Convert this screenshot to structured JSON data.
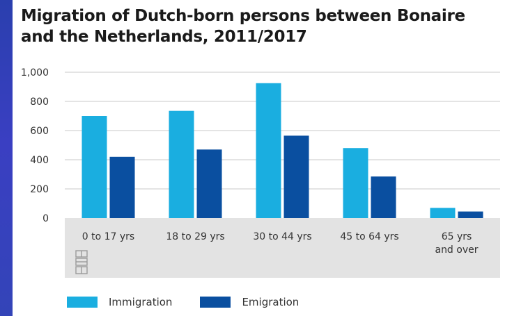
{
  "colors": {
    "immigration": "#1aaee0",
    "emigration": "#0a4fa0",
    "category_band": "#e3e3e3",
    "grid": "#c8c8c8"
  },
  "chart_data": {
    "type": "bar",
    "title": "Migration of Dutch-born persons between Bonaire and the Netherlands, 2011/2017",
    "xlabel": "",
    "ylabel": "",
    "categories": [
      "0 to 17 yrs",
      "18 to 29 yrs",
      "30 to 44 yrs",
      "45 to 64 yrs",
      "65 yrs and over"
    ],
    "category_lines": [
      [
        "0 to 17 yrs"
      ],
      [
        "18 to 29 yrs"
      ],
      [
        "30 to 44 yrs"
      ],
      [
        "45 to 64 yrs"
      ],
      [
        "65 yrs",
        "and over"
      ]
    ],
    "series": [
      {
        "name": "Immigration",
        "values": [
          700,
          735,
          925,
          480,
          70
        ]
      },
      {
        "name": "Emigration",
        "values": [
          420,
          470,
          565,
          285,
          45
        ]
      }
    ],
    "ylim": [
      0,
      1000
    ],
    "yticks": [
      0,
      200,
      400,
      600,
      800,
      1000
    ],
    "ytick_labels": [
      "0",
      "200",
      "400",
      "600",
      "800",
      "1,000"
    ],
    "grid": true,
    "legend": "bottom-left"
  }
}
